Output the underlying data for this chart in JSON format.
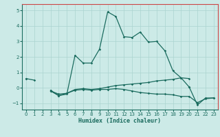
{
  "xlabel": "Humidex (Indice chaleur)",
  "xlim": [
    -0.5,
    23.5
  ],
  "ylim": [
    -1.4,
    5.4
  ],
  "yticks": [
    -1,
    0,
    1,
    2,
    3,
    4,
    5
  ],
  "xticks": [
    0,
    1,
    2,
    3,
    4,
    5,
    6,
    7,
    8,
    9,
    10,
    11,
    12,
    13,
    14,
    15,
    16,
    17,
    18,
    19,
    20,
    21,
    22,
    23
  ],
  "background_color": "#cceae7",
  "grid_color": "#aad4d0",
  "line_color": "#1a6b5e",
  "line1_y": [
    0.6,
    0.5,
    null,
    -0.2,
    -0.5,
    -0.4,
    2.1,
    1.6,
    1.6,
    2.5,
    4.9,
    4.6,
    3.3,
    3.25,
    3.6,
    2.95,
    3.0,
    2.4,
    1.1,
    0.65,
    0.05,
    null,
    null,
    null
  ],
  "line2_y": [
    0.6,
    null,
    null,
    -0.15,
    -0.5,
    -0.35,
    -0.1,
    -0.05,
    -0.1,
    -0.05,
    0.05,
    0.15,
    0.2,
    0.25,
    0.3,
    0.35,
    0.45,
    0.5,
    0.55,
    0.65,
    0.6,
    null,
    null,
    null
  ],
  "line3_y": [
    null,
    null,
    null,
    -0.2,
    -0.4,
    -0.35,
    -0.15,
    -0.1,
    -0.15,
    -0.1,
    -0.1,
    -0.05,
    -0.1,
    -0.2,
    -0.3,
    -0.35,
    -0.4,
    -0.4,
    -0.45,
    -0.55,
    -0.55,
    -0.95,
    -0.7,
    -0.65
  ],
  "line4_y": [
    null,
    null,
    null,
    null,
    null,
    null,
    null,
    null,
    null,
    null,
    null,
    null,
    null,
    null,
    null,
    null,
    null,
    null,
    null,
    null,
    0.05,
    -1.1,
    -0.65,
    -0.65
  ]
}
